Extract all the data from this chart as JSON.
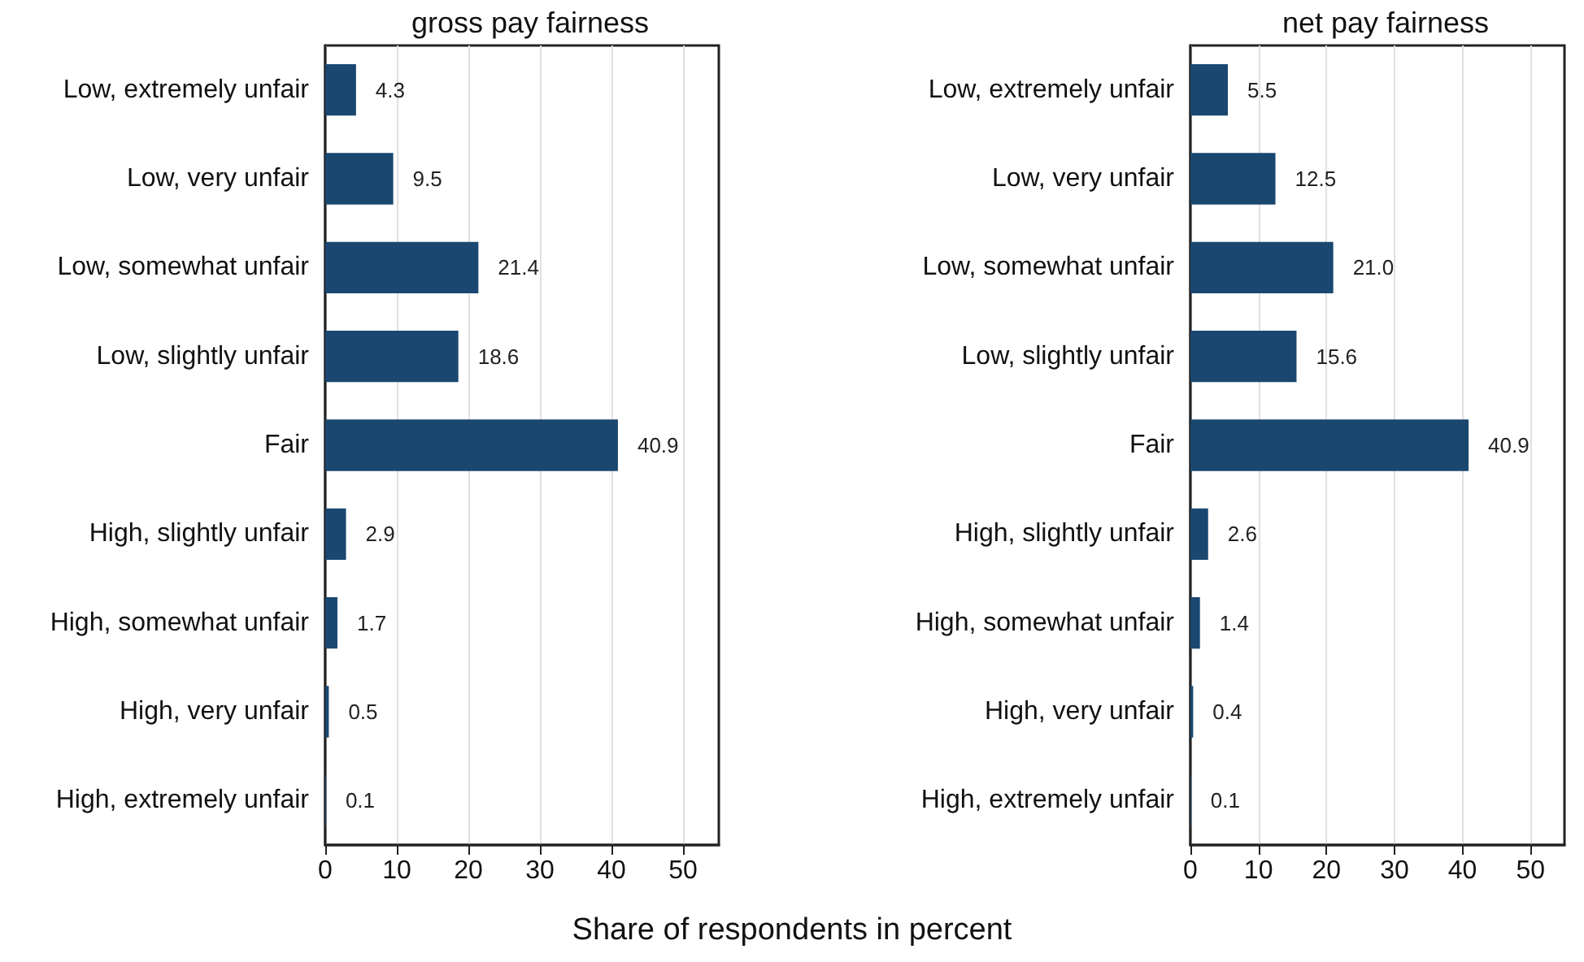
{
  "chart_data": [
    {
      "type": "bar",
      "orientation": "horizontal",
      "title": "gross pay fairness",
      "xlabel": "Share of respondents in percent",
      "categories": [
        "Low, extremely unfair",
        "Low, very unfair",
        "Low, somewhat unfair",
        "Low, slightly unfair",
        "Fair",
        "High, slightly unfair",
        "High, somewhat unfair",
        "High, very unfair",
        "High, extremely unfair"
      ],
      "values": [
        4.3,
        9.5,
        21.4,
        18.6,
        40.9,
        2.9,
        1.7,
        0.5,
        0.1
      ],
      "color": "#1a476f",
      "xlim": [
        0,
        55
      ],
      "xticks": [
        0,
        10,
        20,
        30,
        40,
        50
      ],
      "grid": "x",
      "data_labels": true
    },
    {
      "type": "bar",
      "orientation": "horizontal",
      "title": "net pay fairness",
      "categories": [
        "Low, extremely unfair",
        "Low, very unfair",
        "Low, somewhat unfair",
        "Low, slightly unfair",
        "Fair",
        "High, slightly unfair",
        "High, somewhat unfair",
        "High, very unfair",
        "High, extremely unfair"
      ],
      "values": [
        5.5,
        12.5,
        21.0,
        15.6,
        40.9,
        2.6,
        1.4,
        0.4,
        0.1
      ],
      "color": "#1a476f",
      "value_labels": [
        "5.5",
        "12.5",
        "21.0",
        "15.6",
        "40.9",
        "2.6",
        "1.4",
        "0.4",
        "0.1"
      ],
      "xlim": [
        0,
        55
      ],
      "xticks": [
        0,
        10,
        20,
        30,
        40,
        50
      ],
      "grid": "x"
    }
  ]
}
